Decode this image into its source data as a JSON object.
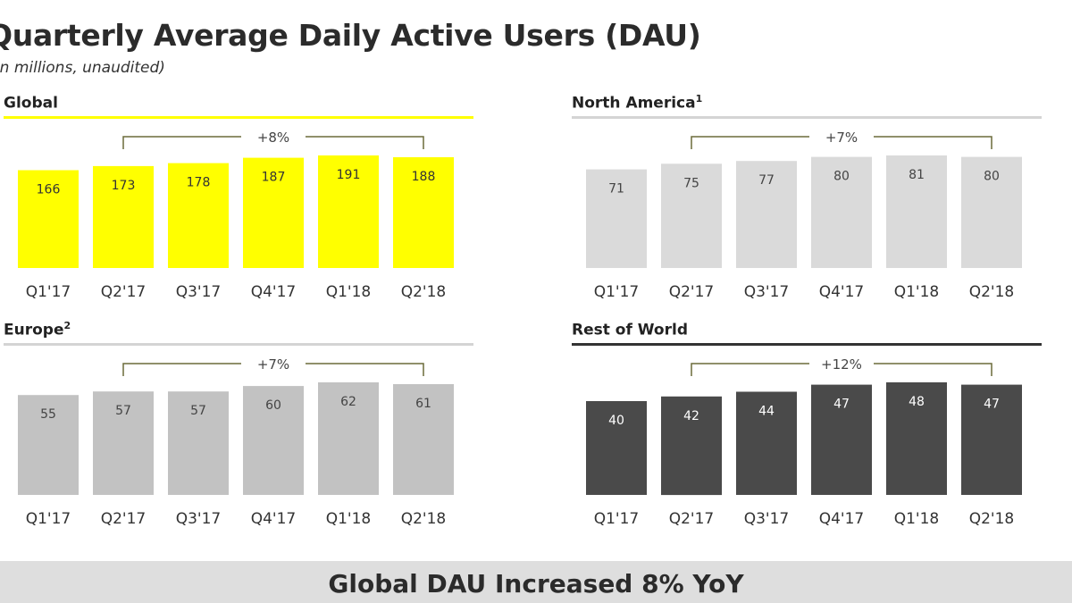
{
  "title": "Quarterly Average Daily Active Users (DAU)",
  "subtitle": "In millions, unaudited",
  "footer": "Global DAU Increased 8% YoY",
  "colors": {
    "global_bar": "#ffff00",
    "global_rule": "#ffff00",
    "north_america_bar": "#dadada",
    "europe_bar": "#c2c2c2",
    "rest_of_world_bar": "#4a4a4a",
    "light_rule": "#d4d4d4",
    "dark_rule": "#333333",
    "bracket": "#6b6b3a"
  },
  "chart_data": [
    {
      "id": "global",
      "type": "bar",
      "title": "Global",
      "footnote": "",
      "categories": [
        "Q1'17",
        "Q2'17",
        "Q3'17",
        "Q4'17",
        "Q1'18",
        "Q2'18"
      ],
      "values": [
        166,
        173,
        178,
        187,
        191,
        188
      ],
      "growth_annotation": "+8%",
      "ylim": [
        0,
        191
      ],
      "bar_color": "#ffff00",
      "label_color": "#333333",
      "rule_color": "#ffff00"
    },
    {
      "id": "north-america",
      "type": "bar",
      "title": "North America",
      "footnote": "1",
      "categories": [
        "Q1'17",
        "Q2'17",
        "Q3'17",
        "Q4'17",
        "Q1'18",
        "Q2'18"
      ],
      "values": [
        71,
        75,
        77,
        80,
        81,
        80
      ],
      "growth_annotation": "+7%",
      "ylim": [
        0,
        81
      ],
      "bar_color": "#dadada",
      "label_color": "#444444",
      "rule_color": "#d4d4d4"
    },
    {
      "id": "europe",
      "type": "bar",
      "title": "Europe",
      "footnote": "2",
      "categories": [
        "Q1'17",
        "Q2'17",
        "Q3'17",
        "Q4'17",
        "Q1'18",
        "Q2'18"
      ],
      "values": [
        55,
        57,
        57,
        60,
        62,
        61
      ],
      "growth_annotation": "+7%",
      "ylim": [
        0,
        62
      ],
      "bar_color": "#c2c2c2",
      "label_color": "#444444",
      "rule_color": "#d4d4d4"
    },
    {
      "id": "rest-of-world",
      "type": "bar",
      "title": "Rest of World",
      "footnote": "",
      "categories": [
        "Q1'17",
        "Q2'17",
        "Q3'17",
        "Q4'17",
        "Q1'18",
        "Q2'18"
      ],
      "values": [
        40,
        42,
        44,
        47,
        48,
        47
      ],
      "growth_annotation": "+12%",
      "ylim": [
        0,
        48
      ],
      "bar_color": "#4a4a4a",
      "label_color": "#ffffff",
      "rule_color": "#333333"
    }
  ]
}
